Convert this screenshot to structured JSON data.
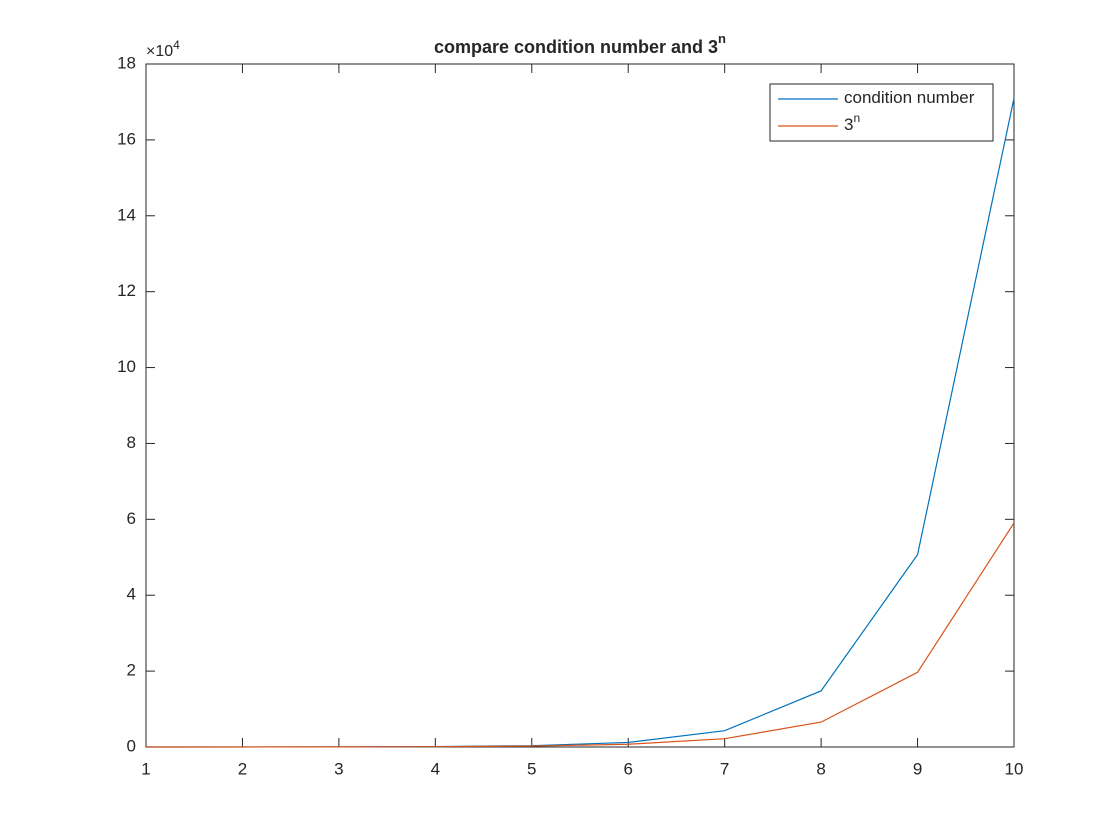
{
  "chart_data": {
    "type": "line",
    "title": "compare condition number and 3",
    "title_superscript": "n",
    "y_multiplier": "×10",
    "y_multiplier_exponent": "4",
    "x": [
      1,
      2,
      3,
      4,
      5,
      6,
      7,
      8,
      9,
      10
    ],
    "series": [
      {
        "name": "condition number",
        "color": "#0072BD",
        "values": [
          0.0001,
          0.001,
          0.003,
          0.01,
          0.035,
          0.12,
          0.43,
          1.48,
          5.07,
          17.1
        ]
      },
      {
        "name": "3",
        "name_superscript": "n",
        "color": "#D95319",
        "values": [
          0.0003,
          0.0009,
          0.0027,
          0.0081,
          0.0243,
          0.0729,
          0.2187,
          0.6561,
          1.9683,
          5.9049
        ]
      }
    ],
    "xlim": [
      1,
      10
    ],
    "xticks": [
      1,
      2,
      3,
      4,
      5,
      6,
      7,
      8,
      9,
      10
    ],
    "ylim": [
      0,
      18
    ],
    "yticks": [
      0,
      2,
      4,
      6,
      8,
      10,
      12,
      14,
      16,
      18
    ],
    "grid": false,
    "legend": "top-right"
  }
}
